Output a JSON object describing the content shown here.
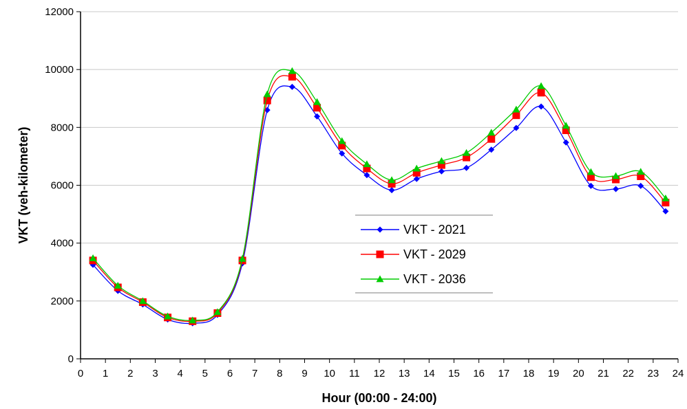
{
  "chart_data": {
    "type": "line",
    "title": "",
    "xlabel": "Hour (00:00 - 24:00)",
    "ylabel": "VKT (veh-kilometer)",
    "xlim": [
      0,
      24
    ],
    "ylim": [
      0,
      12000
    ],
    "xticks": [
      "0",
      "1",
      "2",
      "3",
      "4",
      "5",
      "6",
      "7",
      "8",
      "9",
      "10",
      "11",
      "12",
      "13",
      "14",
      "15",
      "16",
      "17",
      "18",
      "19",
      "20",
      "21",
      "22",
      "23",
      "24"
    ],
    "yticks": [
      "0",
      "2000",
      "4000",
      "6000",
      "8000",
      "10000",
      "12000"
    ],
    "grid": "horizontal",
    "legend_position": "center",
    "x": [
      0.5,
      1.5,
      2.5,
      3.5,
      4.5,
      5.5,
      6.5,
      7.5,
      8.5,
      9.5,
      10.5,
      11.5,
      12.5,
      13.5,
      14.5,
      15.5,
      16.5,
      17.5,
      18.5,
      19.5,
      20.5,
      21.5,
      22.5,
      23.5
    ],
    "series": [
      {
        "name": "VKT - 2021",
        "color": "#0000ff",
        "marker": "diamond",
        "values": [
          3250,
          2350,
          1880,
          1360,
          1230,
          1520,
          3300,
          8600,
          9400,
          8380,
          7100,
          6350,
          5830,
          6220,
          6480,
          6600,
          7230,
          7980,
          8720,
          7480,
          5980,
          5870,
          5980,
          5100
        ]
      },
      {
        "name": "VKT - 2029",
        "color": "#ff0000",
        "marker": "square",
        "values": [
          3400,
          2470,
          1960,
          1430,
          1300,
          1580,
          3400,
          8930,
          9750,
          8680,
          7370,
          6580,
          6050,
          6430,
          6700,
          6960,
          7600,
          8420,
          9200,
          7900,
          6280,
          6200,
          6310,
          5400
        ]
      },
      {
        "name": "VKT - 2036",
        "color": "#00cc00",
        "marker": "triangle",
        "values": [
          3480,
          2530,
          2000,
          1470,
          1330,
          1620,
          3460,
          9150,
          9950,
          8880,
          7530,
          6730,
          6180,
          6580,
          6840,
          7120,
          7820,
          8620,
          9430,
          8060,
          6460,
          6320,
          6470,
          5550
        ]
      }
    ]
  }
}
